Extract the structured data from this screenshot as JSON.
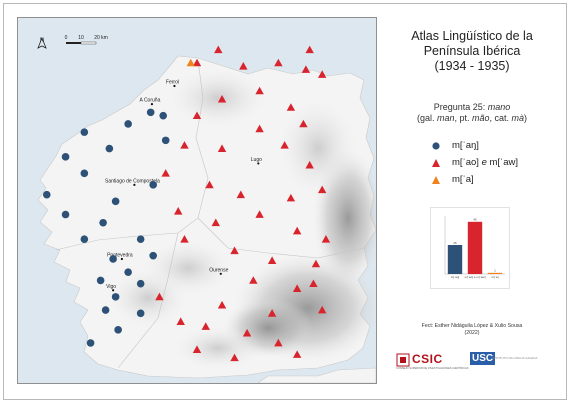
{
  "title_lines": [
    "Atlas Lingüístico de la",
    "Península Ibérica",
    "(1934 - 1935)"
  ],
  "question": {
    "prefix": "Pregunta 25: ",
    "word": "mano",
    "gloss_1": "(gal. ",
    "gloss_gal": "man",
    "gloss_2": ", pt. ",
    "gloss_pt": "mão",
    "gloss_3": ", cat. ",
    "gloss_cat": "mà",
    "gloss_4": ")"
  },
  "legend": [
    {
      "shape": "circle",
      "color": "#2e5277",
      "label": "m[ˈaŋ]"
    },
    {
      "shape": "triangle",
      "color": "#d8242d",
      "label_a": "m[ˈao] ",
      "label_or": "e",
      "label_b": " m[ˈaw]"
    },
    {
      "shape": "triangle",
      "color": "#f0821e",
      "label": "m[ˈa]"
    }
  ],
  "north_label": "N",
  "scale": {
    "labels": [
      "0",
      "10",
      "20 km"
    ]
  },
  "cities": [
    {
      "name": "Ferrol",
      "lon": -8.23,
      "lat": 43.48
    },
    {
      "name": "A Coruña",
      "lon": -8.41,
      "lat": 43.37
    },
    {
      "name": "Lugo",
      "lon": -7.56,
      "lat": 43.01
    },
    {
      "name": "Santiago de Compostela",
      "lon": -8.55,
      "lat": 42.88
    },
    {
      "name": "Pontevedra",
      "lon": -8.65,
      "lat": 42.43
    },
    {
      "name": "Ourense",
      "lon": -7.86,
      "lat": 42.34
    },
    {
      "name": "Vigo",
      "lon": -8.72,
      "lat": 42.24
    }
  ],
  "points": {
    "circle": [
      [
        -8.42,
        43.32
      ],
      [
        -8.32,
        43.3
      ],
      [
        -8.6,
        43.25
      ],
      [
        -8.95,
        43.2
      ],
      [
        -8.3,
        43.15
      ],
      [
        -8.75,
        43.1
      ],
      [
        -9.1,
        43.05
      ],
      [
        -8.95,
        42.95
      ],
      [
        -8.4,
        42.88
      ],
      [
        -9.25,
        42.82
      ],
      [
        -8.7,
        42.78
      ],
      [
        -9.1,
        42.7
      ],
      [
        -8.8,
        42.65
      ],
      [
        -8.95,
        42.55
      ],
      [
        -8.5,
        42.55
      ],
      [
        -8.4,
        42.45
      ],
      [
        -8.72,
        42.43
      ],
      [
        -8.6,
        42.35
      ],
      [
        -8.82,
        42.3
      ],
      [
        -8.5,
        42.28
      ],
      [
        -8.7,
        42.2
      ],
      [
        -8.78,
        42.12
      ],
      [
        -8.5,
        42.1
      ],
      [
        -8.68,
        42.0
      ],
      [
        -8.9,
        41.92
      ]
    ],
    "triangle_red": [
      [
        -7.88,
        43.7
      ],
      [
        -8.05,
        43.62
      ],
      [
        -7.68,
        43.6
      ],
      [
        -7.4,
        43.62
      ],
      [
        -7.18,
        43.58
      ],
      [
        -7.05,
        43.55
      ],
      [
        -7.55,
        43.45
      ],
      [
        -7.85,
        43.4
      ],
      [
        -7.3,
        43.35
      ],
      [
        -8.05,
        43.3
      ],
      [
        -7.55,
        43.22
      ],
      [
        -7.2,
        43.25
      ],
      [
        -8.15,
        43.12
      ],
      [
        -7.85,
        43.1
      ],
      [
        -7.35,
        43.12
      ],
      [
        -7.15,
        43.0
      ],
      [
        -7.05,
        42.85
      ],
      [
        -7.95,
        42.88
      ],
      [
        -7.7,
        42.82
      ],
      [
        -7.3,
        42.8
      ],
      [
        -7.55,
        42.7
      ],
      [
        -7.9,
        42.65
      ],
      [
        -7.25,
        42.6
      ],
      [
        -7.02,
        42.55
      ],
      [
        -8.15,
        42.55
      ],
      [
        -7.75,
        42.48
      ],
      [
        -7.45,
        42.42
      ],
      [
        -7.1,
        42.4
      ],
      [
        -7.6,
        42.3
      ],
      [
        -7.25,
        42.25
      ],
      [
        -7.85,
        42.15
      ],
      [
        -7.05,
        42.12
      ],
      [
        -7.45,
        42.1
      ],
      [
        -8.18,
        42.05
      ],
      [
        -7.65,
        41.98
      ],
      [
        -7.4,
        41.92
      ],
      [
        -8.05,
        41.88
      ],
      [
        -7.25,
        41.85
      ],
      [
        -7.75,
        41.83
      ],
      [
        -7.15,
        43.7
      ],
      [
        -8.3,
        42.95
      ],
      [
        -8.2,
        42.72
      ],
      [
        -8.35,
        42.2
      ],
      [
        -7.98,
        42.02
      ],
      [
        -7.12,
        42.28
      ]
    ],
    "triangle_orange": [
      [
        -8.1,
        43.62
      ]
    ]
  },
  "chart_data": {
    "type": "bar",
    "categories": [
      "m[ˈaŋ]",
      "m[ˈao] e m[ˈaw]",
      "m[ˈa]"
    ],
    "values": [
      25,
      45,
      1
    ],
    "value_labels": [
      "25",
      "45",
      "1"
    ],
    "colors": [
      "#2e5277",
      "#d8242d",
      "#f0821e"
    ],
    "ylim": [
      0,
      50
    ]
  },
  "credit_lines": [
    "Fect: Esther Nidáguila López & Xulio Sousa",
    "(2022)"
  ],
  "logos": {
    "csic_word": "CSIC",
    "csic_sub": "CONSEJO SUPERIOR DE INVESTIGACIONES CIENTÍFICAS",
    "usc_word": "USC",
    "usc_sub": "INSTITUTO DA LINGUA GALEGA"
  },
  "colors": {
    "sea": "#dde7ef",
    "land": "#f4f4f4"
  }
}
